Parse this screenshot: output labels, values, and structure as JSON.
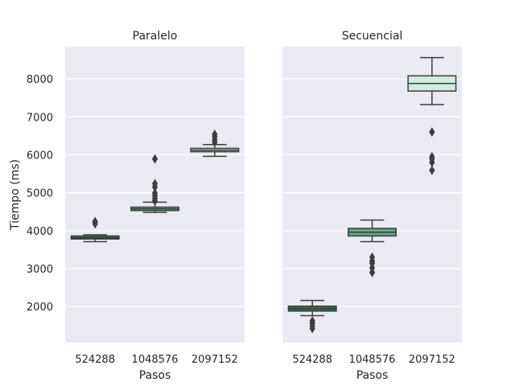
{
  "chart_data": {
    "type": "box",
    "ylabel": "Tiempo (ms)",
    "xlabel": "Pasos",
    "categories": [
      "524288",
      "1048576",
      "2097152"
    ],
    "yticks": [
      2000,
      3000,
      4000,
      5000,
      6000,
      7000,
      8000
    ],
    "ylim": [
      1050,
      8850
    ],
    "shared_y": true,
    "grid": true,
    "panels": [
      {
        "title": "Paralelo",
        "boxes": [
          {
            "category": "524288",
            "whisker_low": 3710,
            "q1": 3780,
            "median": 3810,
            "q3": 3860,
            "whisker_high": 3890,
            "outliers": [
              4180,
              4240
            ],
            "color": "#2f6e48"
          },
          {
            "category": "1048576",
            "whisker_low": 4480,
            "q1": 4530,
            "median": 4575,
            "q3": 4620,
            "whisker_high": 4750,
            "outliers": [
              4780,
              4850,
              4920,
              4990,
              5150,
              5240,
              5890
            ],
            "color": "#5fa985"
          },
          {
            "category": "2097152",
            "whisker_low": 5960,
            "q1": 6080,
            "median": 6120,
            "q3": 6170,
            "whisker_high": 6270,
            "outliers": [
              6330,
              6400,
              6480,
              6540
            ],
            "color": "#b6dfca"
          }
        ]
      },
      {
        "title": "Secuencial",
        "boxes": [
          {
            "category": "524288",
            "whisker_low": 1760,
            "q1": 1880,
            "median": 1940,
            "q3": 2010,
            "whisker_high": 2160,
            "outliers": [
              1420,
              1480,
              1560,
              1620
            ],
            "color": "#2f6e48"
          },
          {
            "category": "1048576",
            "whisker_low": 3710,
            "q1": 3860,
            "median": 3960,
            "q3": 4060,
            "whisker_high": 4280,
            "outliers": [
              2900,
              3020,
              3140,
              3200,
              3300
            ],
            "color": "#5fa985"
          },
          {
            "category": "2097152",
            "whisker_low": 7320,
            "q1": 7680,
            "median": 7880,
            "q3": 8080,
            "whisker_high": 8560,
            "outliers": [
              5590,
              5800,
              5890,
              5950,
              6600
            ],
            "color": "#d4ece2"
          }
        ]
      }
    ]
  }
}
